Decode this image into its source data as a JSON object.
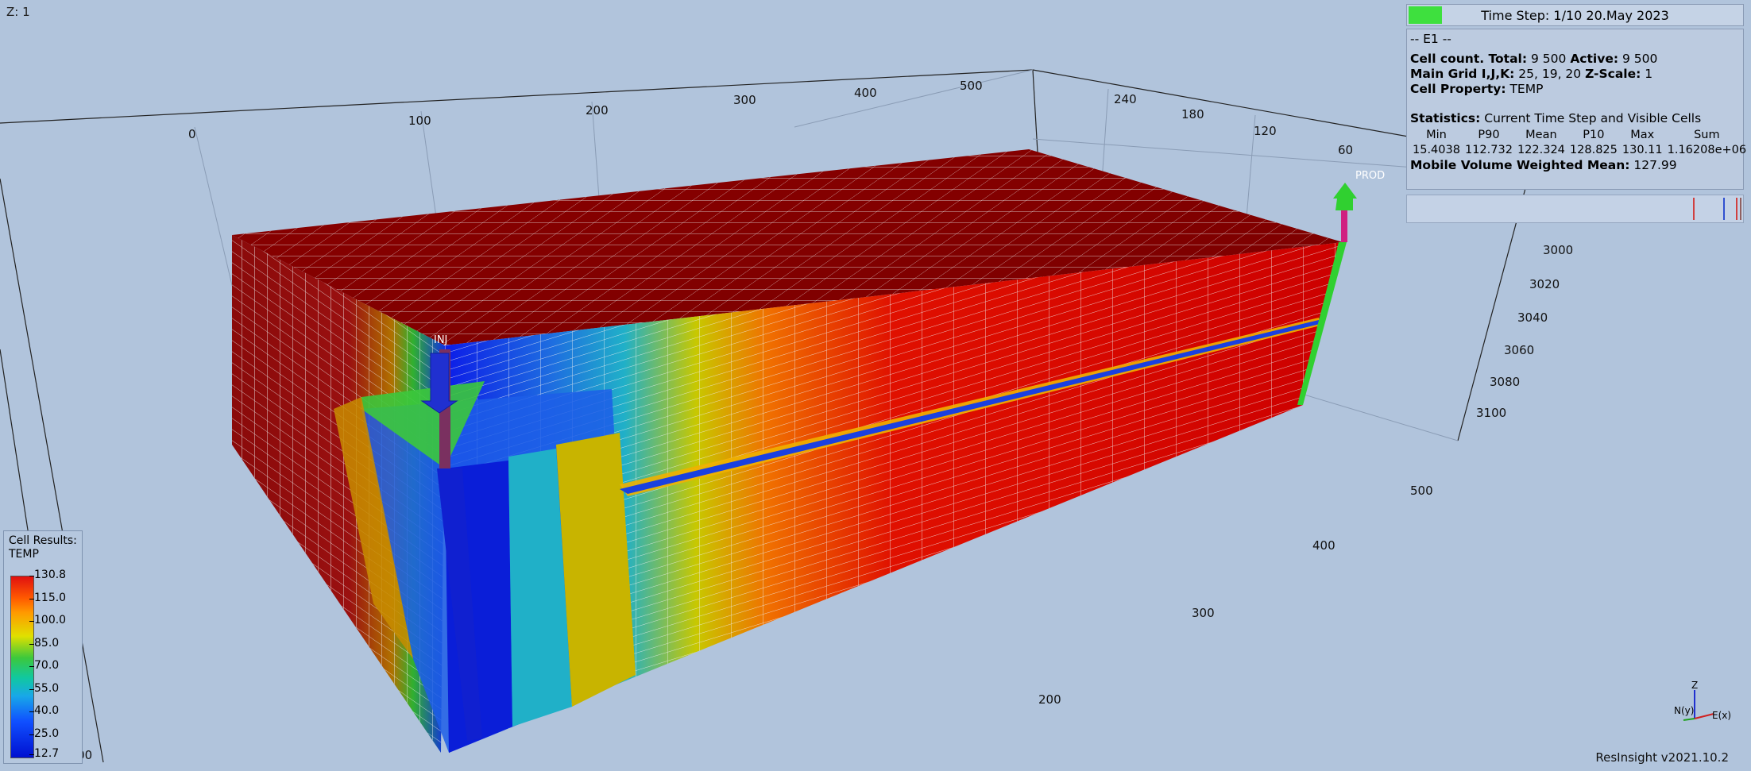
{
  "view": {
    "z_label": "Z: 1",
    "version": "ResInsight v2021.10.2"
  },
  "timestep": {
    "label": "Time Step: 1/10 20.May 2023",
    "progress": 0.1,
    "color": "#3ee03e"
  },
  "info": {
    "case_name": "-- E1 --",
    "cell_count_label": "Cell count. Total:",
    "cell_total": "9 500",
    "active_label": "Active:",
    "active": "9 500",
    "grid_label": "Main Grid I,J,K:",
    "grid_dims": "25, 19, 20",
    "zscale_label": "Z-Scale:",
    "zscale": "1",
    "property_label": "Cell Property:",
    "property": "TEMP",
    "stats_label": "Statistics:",
    "stats_scope": "Current Time Step and Visible Cells",
    "stats_headers": [
      "Min",
      "P90",
      "Mean",
      "P10",
      "Max",
      "Sum"
    ],
    "stats_values": [
      "15.4038",
      "112.732",
      "122.324",
      "128.825",
      "130.11",
      "1.16208e+06"
    ],
    "mobile_label": "Mobile Volume Weighted Mean:",
    "mobile_value": "127.99"
  },
  "legend": {
    "title_line1": "Cell Results:",
    "title_line2": "TEMP",
    "ticks": [
      "130.8",
      "115.0",
      "100.0",
      "85.0",
      "70.0",
      "55.0",
      "40.0",
      "25.0",
      "12.7"
    ]
  },
  "axes": {
    "top_x": [
      "0",
      "100",
      "200",
      "300",
      "400",
      "500"
    ],
    "top_y": [
      "240",
      "180",
      "120",
      "60"
    ],
    "depth": [
      "3000",
      "3020",
      "3040",
      "3060",
      "3080",
      "3100"
    ],
    "bottom": [
      "500",
      "400",
      "300",
      "200"
    ],
    "corner_depth": "3000"
  },
  "wells": {
    "injector": "INJ",
    "producer": "PROD"
  },
  "gizmo": {
    "z": "Z",
    "n": "N(y)",
    "e": "E(x)"
  }
}
